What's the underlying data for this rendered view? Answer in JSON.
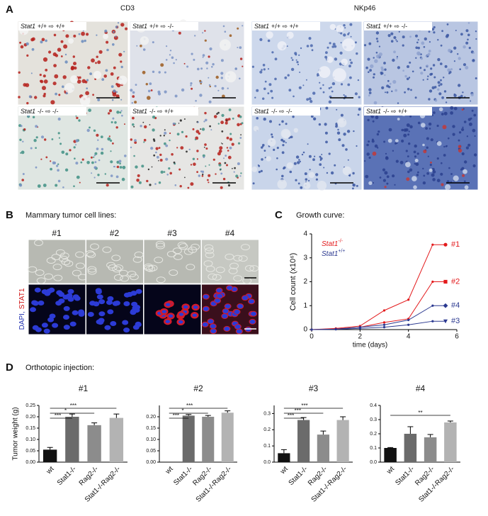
{
  "figure": {
    "panel_a": {
      "label": "A",
      "groups": [
        {
          "title": "CD3",
          "tiles": [
            {
              "gene": "Stat1",
              "genotype": "+/+ ⇨ +/+"
            },
            {
              "gene": "Stat1",
              "genotype": "+/+ ⇨ -/-"
            },
            {
              "gene": "Stat1",
              "genotype": "-/- ⇨ -/-"
            },
            {
              "gene": "Stat1",
              "genotype": "-/- ⇨ +/+"
            }
          ]
        },
        {
          "title": "NKp46",
          "tiles": [
            {
              "gene": "Stat1",
              "genotype": "+/+ ⇨ +/+"
            },
            {
              "gene": "Stat1",
              "genotype": "+/+ ⇨ -/-"
            },
            {
              "gene": "Stat1",
              "genotype": "-/- ⇨ -/-"
            },
            {
              "gene": "Stat1",
              "genotype": "-/- ⇨ +/+"
            }
          ]
        }
      ]
    },
    "panel_b": {
      "label": "B",
      "title": "Mammary tumor cell lines:",
      "columns": [
        "#1",
        "#2",
        "#3",
        "#4"
      ],
      "row_label": [
        "DAPI,",
        "STAT1"
      ]
    },
    "panel_c": {
      "label": "C",
      "title": "Growth curve:"
    },
    "panel_d": {
      "label": "D",
      "title": "Orthotopic injection:"
    }
  },
  "chart_data": [
    {
      "type": "line",
      "xlabel": "time (days)",
      "ylabel": "Cell count (x10⁶)",
      "x": [
        0,
        1,
        2,
        3,
        4,
        5
      ],
      "xlim": [
        0,
        6
      ],
      "xticks": [
        0,
        2,
        4,
        6
      ],
      "ylim": [
        0,
        4
      ],
      "yticks": [
        0,
        1,
        2,
        3,
        4
      ],
      "annotations": [
        {
          "text": "Stat1",
          "superscript": "-/-",
          "color": "#e31a1c"
        },
        {
          "text": "Stat1",
          "superscript": "+/+",
          "color": "#2b3990"
        }
      ],
      "series": [
        {
          "name": "#1",
          "color": "#e31a1c",
          "marker": "circle",
          "values": [
            0,
            0.05,
            0.15,
            0.8,
            1.25,
            3.55
          ]
        },
        {
          "name": "#2",
          "color": "#e31a1c",
          "marker": "square",
          "values": [
            0,
            0.03,
            0.1,
            0.3,
            0.45,
            2.0
          ]
        },
        {
          "name": "#4",
          "color": "#2b3990",
          "marker": "diamond",
          "values": [
            0,
            0.02,
            0.1,
            0.2,
            0.4,
            1.0
          ]
        },
        {
          "name": "#3",
          "color": "#2b3990",
          "marker": "triangle-down",
          "values": [
            0,
            0.01,
            0.05,
            0.1,
            0.2,
            0.35
          ]
        }
      ]
    },
    {
      "type": "bar",
      "title": "#1",
      "ylabel": "Tumor weight (g)",
      "categories": [
        "wt",
        "Stat1-/-",
        "Rag2-/-",
        "Stat1-/-Rag2-/-"
      ],
      "colors": [
        "#111111",
        "#6b6b6b",
        "#8c8c8c",
        "#b3b3b3"
      ],
      "values": [
        0.055,
        0.2,
        0.163,
        0.195
      ],
      "errors": [
        0.01,
        0.012,
        0.01,
        0.017
      ],
      "ylim": [
        0,
        0.25
      ],
      "yticks": [
        {
          "value": 0,
          "label": "0.00"
        },
        0.05,
        {
          "value": 0.1,
          "label": "0.10"
        },
        0.15,
        {
          "value": 0.2,
          "label": "0.20"
        },
        0.25
      ],
      "brackets": [
        {
          "label": "***",
          "end": "Stat1-/-"
        },
        {
          "label": "*",
          "end": "Rag2-/-"
        },
        {
          "label": "***",
          "end": "Stat1-/-Rag2-/-"
        }
      ]
    },
    {
      "type": "bar",
      "title": "#2",
      "categories": [
        "wt",
        "Stat1-/-",
        "Rag2-/-",
        "Stat1-/-Rag2-/-"
      ],
      "colors": [
        "#111111",
        "#6b6b6b",
        "#8c8c8c",
        "#b3b3b3"
      ],
      "values": [
        0,
        0.205,
        0.2,
        0.218
      ],
      "errors": [
        0,
        0.005,
        0.006,
        0.008
      ],
      "ylim": [
        0,
        0.25
      ],
      "yticks": [
        {
          "value": 0,
          "label": "0.00"
        },
        0.05,
        {
          "value": 0.1,
          "label": "0.10"
        },
        0.15,
        {
          "value": 0.2,
          "label": "0.20"
        }
      ],
      "brackets": [
        {
          "label": "***",
          "end": "Stat1-/-"
        },
        {
          "label": "*",
          "end": "Rag2-/-"
        },
        {
          "label": "***",
          "end": "Stat1-/-Rag2-/-"
        }
      ]
    },
    {
      "type": "bar",
      "title": "#3",
      "categories": [
        "wt",
        "Stat1-/-",
        "Rag2-/-",
        "Stat1-/-Rag2-/-"
      ],
      "colors": [
        "#111111",
        "#6b6b6b",
        "#8c8c8c",
        "#b3b3b3"
      ],
      "values": [
        0.055,
        0.26,
        0.17,
        0.26
      ],
      "errors": [
        0.022,
        0.015,
        0.022,
        0.02
      ],
      "ylim": [
        0,
        0.35
      ],
      "yticks": [
        {
          "value": 0,
          "label": "0.0"
        },
        0.1,
        0.2,
        0.3
      ],
      "brackets": [
        {
          "label": "***",
          "end": "Stat1-/-"
        },
        {
          "label": "***",
          "end": "Rag2-/-"
        },
        {
          "label": "***",
          "end": "Stat1-/-Rag2-/-"
        }
      ]
    },
    {
      "type": "bar",
      "title": "#4",
      "categories": [
        "wt",
        "Stat1-/-",
        "Rag2-/-",
        "Stat1-/-Rag2-/-"
      ],
      "colors": [
        "#111111",
        "#6b6b6b",
        "#8c8c8c",
        "#b3b3b3"
      ],
      "values": [
        0.1,
        0.2,
        0.175,
        0.28
      ],
      "errors": [
        0.003,
        0.05,
        0.02,
        0.01
      ],
      "ylim": [
        0,
        0.4
      ],
      "yticks": [
        {
          "value": 0,
          "label": "0.0"
        },
        0.1,
        0.2,
        0.3,
        0.4
      ],
      "brackets": [
        {
          "label": "**",
          "end": "Stat1-/-Rag2-/-"
        }
      ]
    }
  ]
}
